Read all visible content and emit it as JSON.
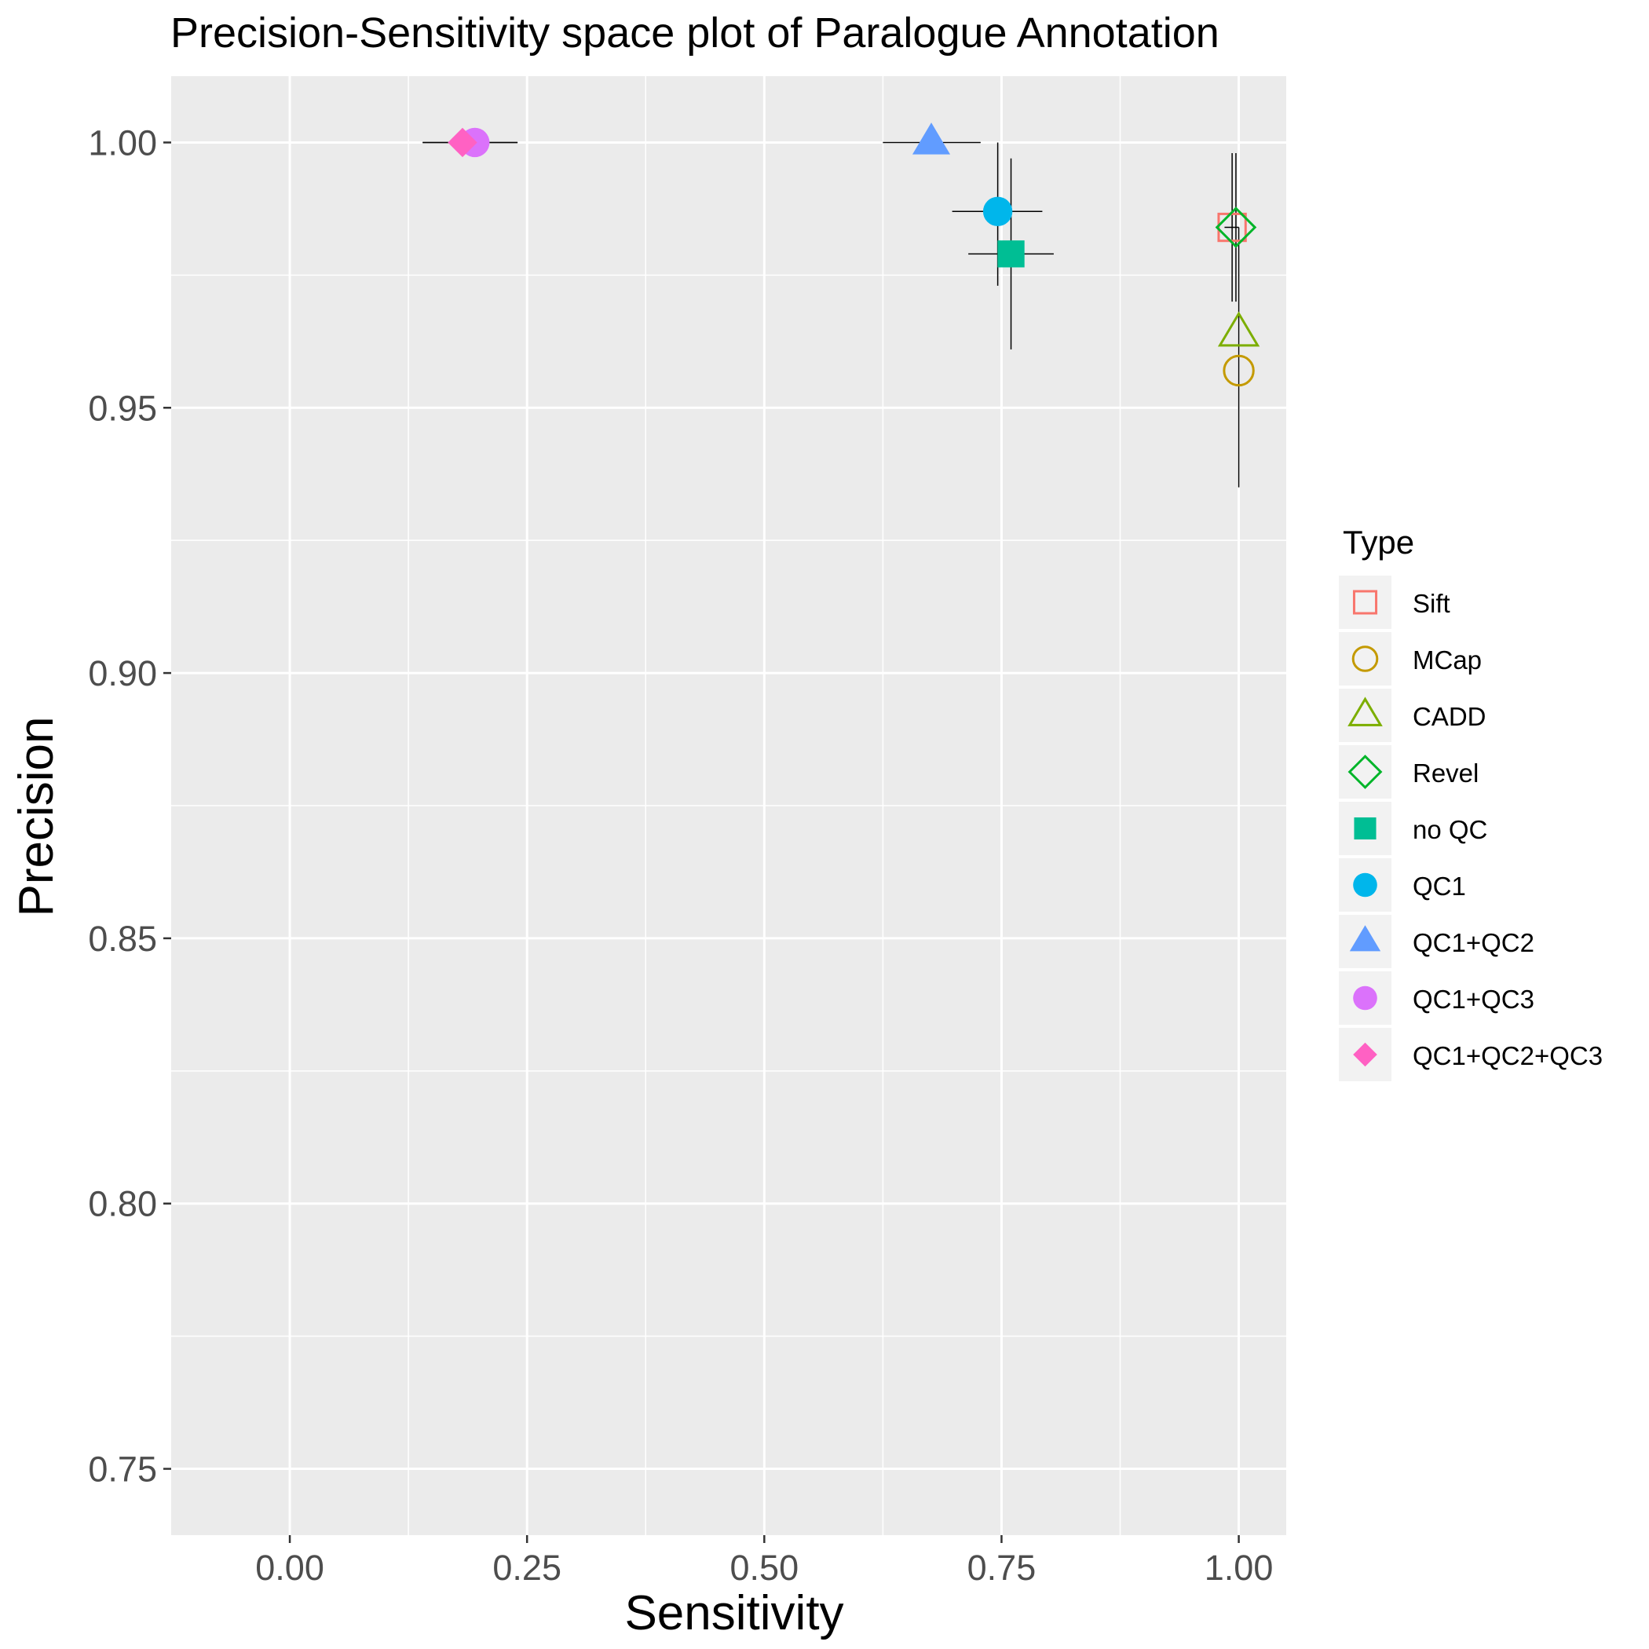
{
  "chart_data": {
    "type": "scatter",
    "title": "Precision-Sensitivity space plot of Paralogue Annotation",
    "xlabel": "Sensitivity",
    "ylabel": "Precision",
    "xlim": [
      -0.125,
      1.05
    ],
    "ylim": [
      0.7375,
      1.0125
    ],
    "x_ticks": [
      0.0,
      0.25,
      0.5,
      0.75,
      1.0
    ],
    "x_tick_labels": [
      "0.00",
      "0.25",
      "0.50",
      "0.75",
      "1.00"
    ],
    "y_ticks": [
      0.75,
      0.8,
      0.85,
      0.9,
      0.95,
      1.0
    ],
    "y_tick_labels": [
      "0.75",
      "0.80",
      "0.85",
      "0.90",
      "0.95",
      "1.00"
    ],
    "grid": true,
    "panel_background": "#EBEBEB",
    "legend": {
      "title": "Type",
      "position": "right"
    },
    "series": [
      {
        "name": "Sift",
        "shape": "square-open",
        "color": "#F8766D",
        "x": 0.993,
        "y": 0.984,
        "x_err": [
          0.985,
          1.0
        ],
        "y_err": [
          0.97,
          0.998
        ]
      },
      {
        "name": "MCap",
        "shape": "circle-open",
        "color": "#C49A00",
        "x": 1.0,
        "y": 0.957,
        "x_err": null,
        "y_err": [
          0.935,
          0.984
        ]
      },
      {
        "name": "CADD",
        "shape": "triangle-open",
        "color": "#7CAE00",
        "x": 1.0,
        "y": 0.964,
        "x_err": null,
        "y_err": null
      },
      {
        "name": "Revel",
        "shape": "diamond-open",
        "color": "#00B529",
        "x": 0.997,
        "y": 0.984,
        "x_err": null,
        "y_err": [
          0.97,
          0.998
        ]
      },
      {
        "name": "no QC",
        "shape": "square",
        "color": "#00BE94",
        "x": 0.76,
        "y": 0.979,
        "x_err": [
          0.715,
          0.805
        ],
        "y_err": [
          0.961,
          0.997
        ]
      },
      {
        "name": "QC1",
        "shape": "circle",
        "color": "#00B6EB",
        "x": 0.746,
        "y": 0.987,
        "x_err": [
          0.698,
          0.793
        ],
        "y_err": [
          0.973,
          1.0
        ]
      },
      {
        "name": "QC1+QC2",
        "shape": "triangle",
        "color": "#619CFF",
        "x": 0.676,
        "y": 1.0,
        "x_err": [
          0.625,
          0.728
        ],
        "y_err": null
      },
      {
        "name": "QC1+QC3",
        "shape": "circle",
        "color": "#DB72FB",
        "x": 0.195,
        "y": 1.0,
        "x_err": [
          0.14,
          0.24
        ],
        "y_err": null
      },
      {
        "name": "QC1+QC2+QC3",
        "shape": "diamond",
        "color": "#FF61C3",
        "x": 0.182,
        "y": 1.0,
        "x_err": [
          0.14,
          0.24
        ],
        "y_err": null
      }
    ]
  }
}
